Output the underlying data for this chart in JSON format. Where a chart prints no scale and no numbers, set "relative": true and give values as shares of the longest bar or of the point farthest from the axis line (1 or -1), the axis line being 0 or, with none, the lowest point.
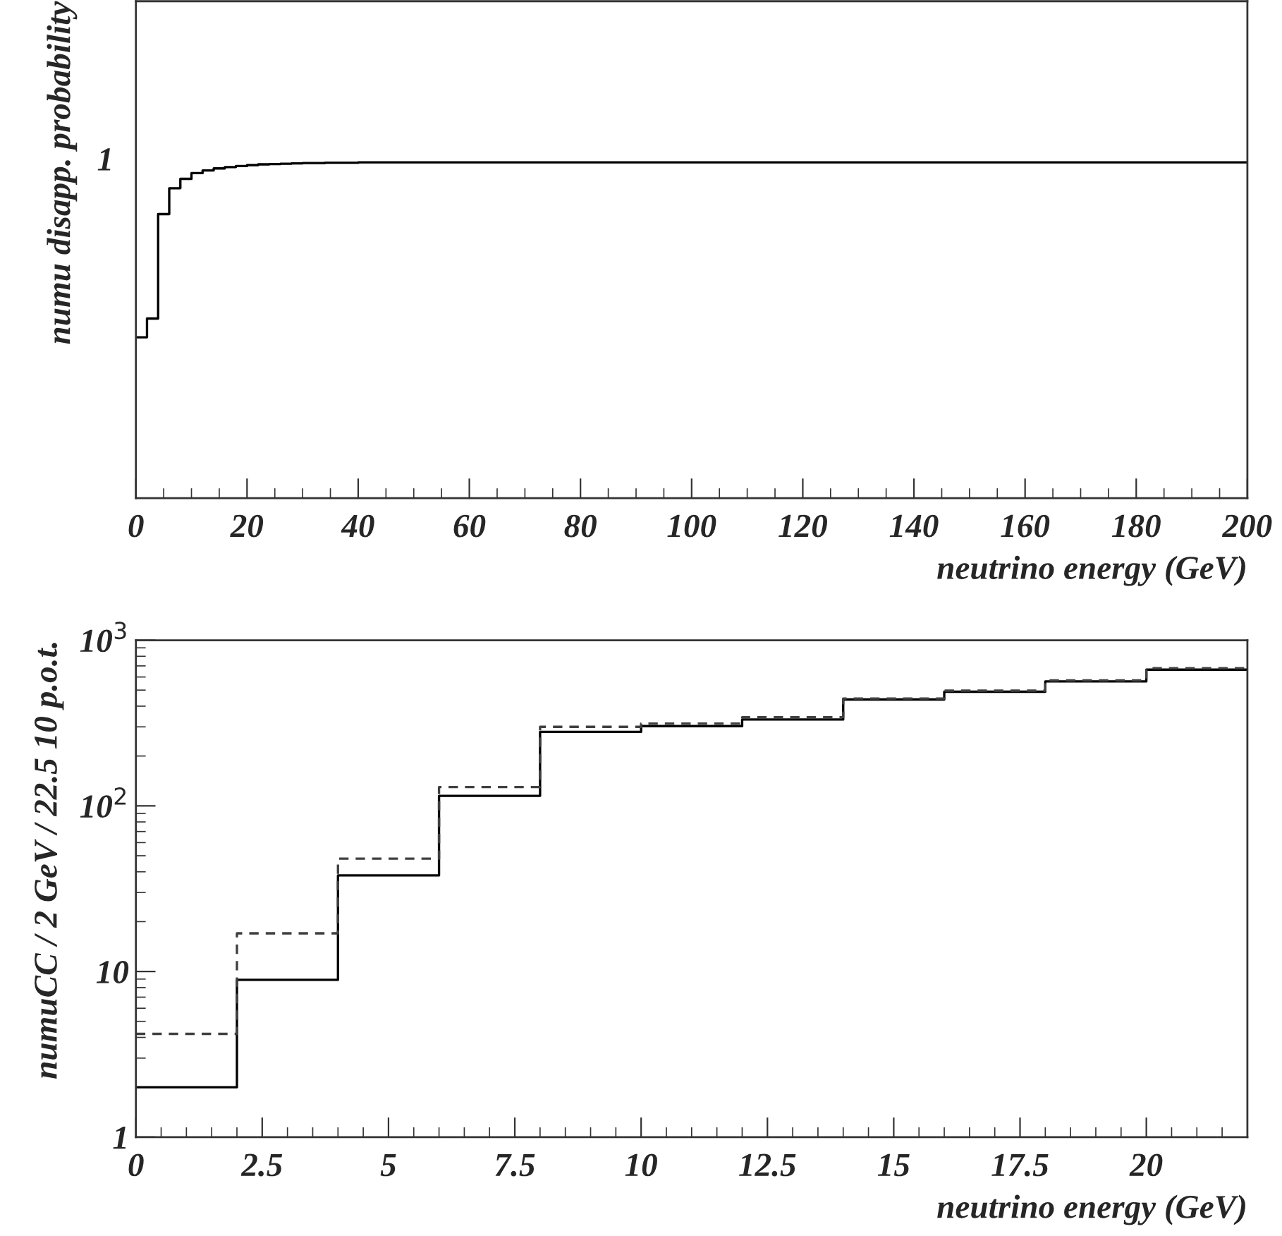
{
  "chart_data": [
    {
      "type": "step",
      "relative": true,
      "xlabel": "neutrino energy (GeV)",
      "ylabel": "numu disapp. probability",
      "annotations": [
        "1"
      ],
      "x": [
        0,
        2,
        4,
        6,
        8,
        10,
        12,
        14,
        16,
        18,
        20,
        22,
        24,
        26,
        28,
        30,
        32,
        34,
        36,
        38,
        40,
        42,
        44,
        46,
        48,
        50,
        52,
        54,
        56,
        58,
        60,
        62,
        64,
        66,
        68,
        70,
        72,
        74,
        76,
        78,
        80,
        82,
        84,
        86,
        88,
        90,
        92,
        94,
        96,
        98,
        100,
        102,
        104,
        106,
        108,
        110,
        112,
        114,
        116,
        118,
        120,
        122,
        124,
        126,
        128,
        130,
        132,
        134,
        136,
        138,
        140,
        142,
        144,
        146,
        148,
        150,
        152,
        154,
        156,
        158,
        160,
        162,
        164,
        166,
        168,
        170,
        172,
        174,
        176,
        178,
        180,
        182,
        184,
        186,
        188,
        190,
        192,
        194,
        196,
        198,
        200
      ],
      "series": [
        {
          "color": "#000000",
          "line_style": "solid",
          "values": [
            0.479,
            0.535,
            0.846,
            0.923,
            0.951,
            0.968,
            0.976,
            0.982,
            0.986,
            0.989,
            0.992,
            0.994,
            0.995,
            0.996,
            0.997,
            0.998,
            0.998,
            0.999,
            0.999,
            0.999,
            1,
            1,
            1,
            1,
            1,
            1,
            1,
            1,
            1,
            1,
            1,
            1,
            1,
            1,
            1,
            1,
            1,
            1,
            1,
            1,
            1,
            1,
            1,
            1,
            1,
            1,
            1,
            1,
            1,
            1,
            1,
            1,
            1,
            1,
            1,
            1,
            1,
            1,
            1,
            1,
            1,
            1,
            1,
            1,
            1,
            1,
            1,
            1,
            1,
            1,
            1,
            1,
            1,
            1,
            1,
            1,
            1,
            1,
            1,
            1,
            1,
            1,
            1,
            1,
            1,
            1,
            1,
            1,
            1,
            1,
            1,
            1,
            1,
            1,
            1,
            1,
            1,
            1,
            1,
            1,
            1
          ]
        }
      ],
      "xlim": [
        0,
        200
      ],
      "xticks": [
        0,
        {
          "value": 5,
          "label": null
        },
        {
          "value": 10,
          "label": null
        },
        {
          "value": 15,
          "label": null
        },
        20,
        {
          "value": 25,
          "label": null
        },
        {
          "value": 30,
          "label": null
        },
        {
          "value": 35,
          "label": null
        },
        40,
        {
          "value": 45,
          "label": null
        },
        {
          "value": 50,
          "label": null
        },
        {
          "value": 55,
          "label": null
        },
        60,
        {
          "value": 65,
          "label": null
        },
        {
          "value": 70,
          "label": null
        },
        {
          "value": 75,
          "label": null
        },
        80,
        {
          "value": 85,
          "label": null
        },
        {
          "value": 90,
          "label": null
        },
        {
          "value": 95,
          "label": null
        },
        100,
        {
          "value": 105,
          "label": null
        },
        {
          "value": 110,
          "label": null
        },
        {
          "value": 115,
          "label": null
        },
        120,
        {
          "value": 125,
          "label": null
        },
        {
          "value": 130,
          "label": null
        },
        {
          "value": 135,
          "label": null
        },
        140,
        {
          "value": 145,
          "label": null
        },
        {
          "value": 150,
          "label": null
        },
        {
          "value": 155,
          "label": null
        },
        160,
        {
          "value": 165,
          "label": null
        },
        {
          "value": 170,
          "label": null
        },
        {
          "value": 175,
          "label": null
        },
        180,
        {
          "value": 185,
          "label": null
        },
        {
          "value": 190,
          "label": null
        },
        {
          "value": 195,
          "label": null
        },
        200
      ],
      "grid": false,
      "legend": false
    },
    {
      "type": "histogram",
      "log": "y",
      "xlabel": "neutrino energy (GeV)",
      "ylabel": "numuCC / 2 GeV / 22.5 10 p.o.t.",
      "bins": [
        0,
        2,
        4,
        6,
        8,
        10,
        12,
        14,
        16,
        18,
        20,
        22
      ],
      "series": [
        {
          "color": "#000000",
          "line_style": "solid",
          "values": [
            2.0,
            8.9,
            38,
            115,
            280,
            303,
            332,
            439,
            489,
            564,
            664
          ]
        },
        {
          "color": "#404040",
          "line_style": "dashed",
          "values": [
            4.2,
            17,
            48,
            130,
            300,
            314,
            343,
            445,
            496,
            572,
            678
          ]
        }
      ],
      "xlim": [
        0,
        22
      ],
      "ylim": [
        1,
        1000
      ],
      "xticks": [
        0,
        {
          "value": 0.5,
          "label": null
        },
        {
          "value": 1,
          "label": null
        },
        {
          "value": 1.5,
          "label": null
        },
        {
          "value": 2,
          "label": null
        },
        2.5,
        {
          "value": 3,
          "label": null
        },
        {
          "value": 3.5,
          "label": null
        },
        {
          "value": 4,
          "label": null
        },
        {
          "value": 4.5,
          "label": null
        },
        5,
        {
          "value": 5.5,
          "label": null
        },
        {
          "value": 6,
          "label": null
        },
        {
          "value": 6.5,
          "label": null
        },
        {
          "value": 7,
          "label": null
        },
        7.5,
        {
          "value": 8,
          "label": null
        },
        {
          "value": 8.5,
          "label": null
        },
        {
          "value": 9,
          "label": null
        },
        {
          "value": 9.5,
          "label": null
        },
        10,
        {
          "value": 10.5,
          "label": null
        },
        {
          "value": 11,
          "label": null
        },
        {
          "value": 11.5,
          "label": null
        },
        {
          "value": 12,
          "label": null
        },
        12.5,
        {
          "value": 13,
          "label": null
        },
        {
          "value": 13.5,
          "label": null
        },
        {
          "value": 14,
          "label": null
        },
        {
          "value": 14.5,
          "label": null
        },
        15,
        {
          "value": 15.5,
          "label": null
        },
        {
          "value": 16,
          "label": null
        },
        {
          "value": 16.5,
          "label": null
        },
        {
          "value": 17,
          "label": null
        },
        17.5,
        {
          "value": 18,
          "label": null
        },
        {
          "value": 18.5,
          "label": null
        },
        {
          "value": 19,
          "label": null
        },
        {
          "value": 19.5,
          "label": null
        },
        20,
        {
          "value": 20.5,
          "label": null
        },
        {
          "value": 21,
          "label": null
        },
        {
          "value": 21.5,
          "label": null
        }
      ],
      "yticks": [
        1,
        10,
        {
          "value": 100,
          "label": "10$^{2}$"
        },
        {
          "value": 1000,
          "label": "10$^{3}$"
        }
      ],
      "grid": false,
      "legend": false
    }
  ]
}
